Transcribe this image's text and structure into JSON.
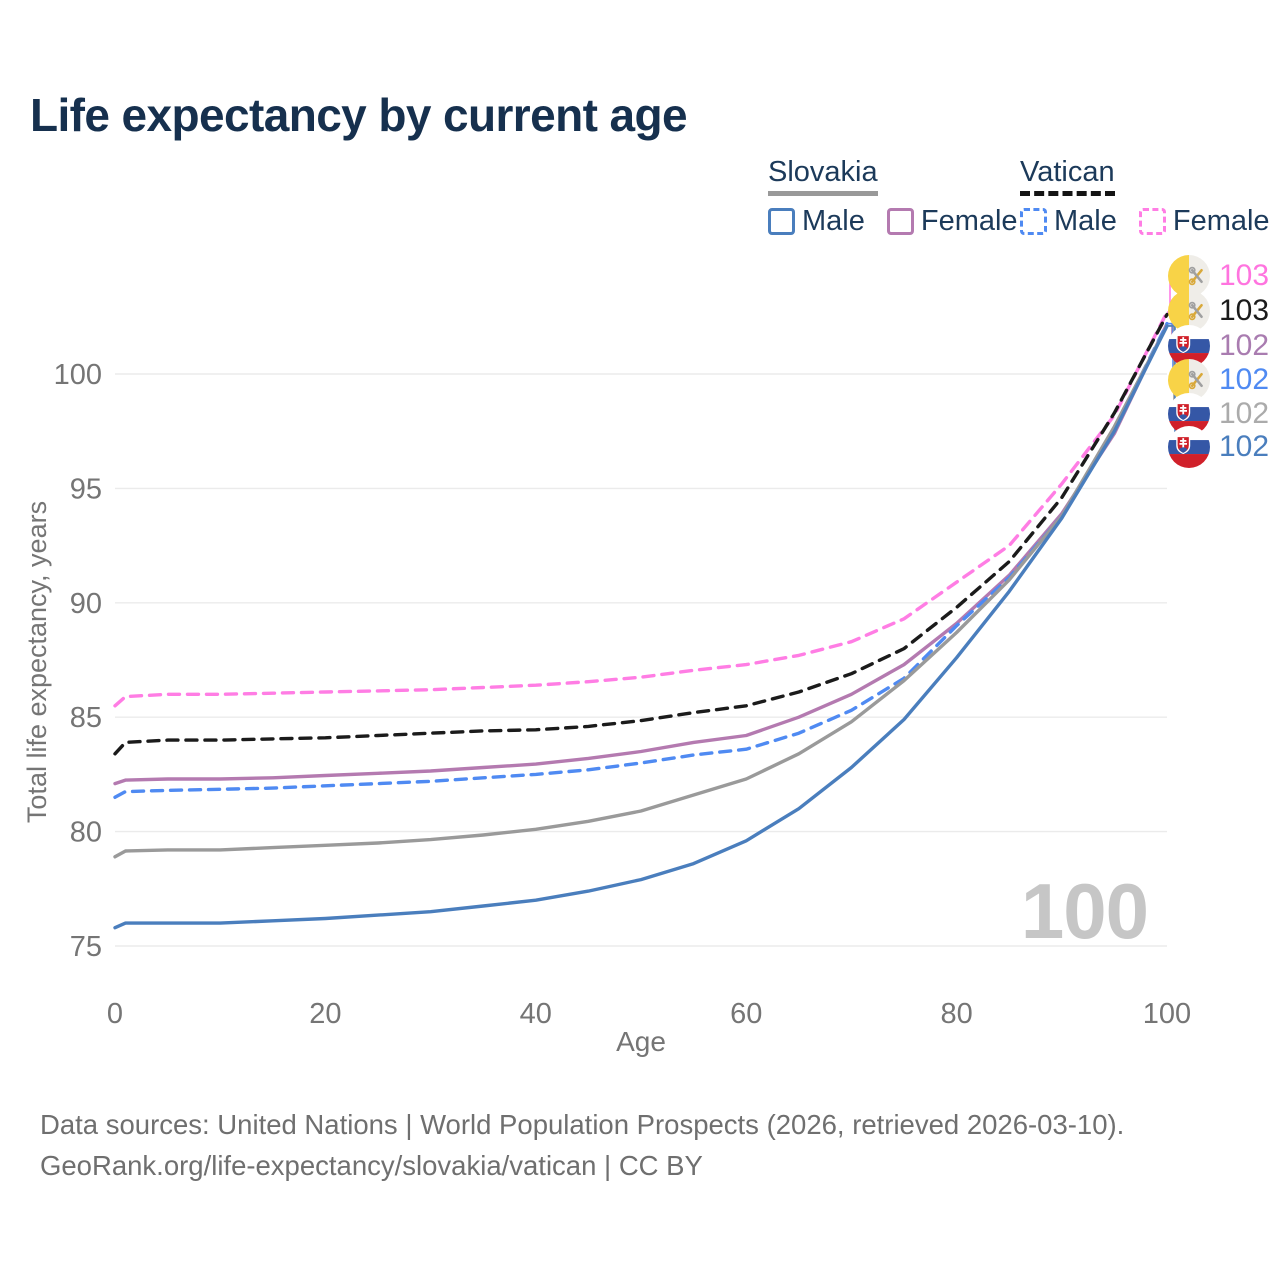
{
  "title": "Life expectancy by current age",
  "watermark": "100",
  "legend": {
    "groups": [
      {
        "name": "Slovakia",
        "line_style": "solid",
        "underline_color": "#999999",
        "items": [
          {
            "label": "Male",
            "color": "#4a7ebd",
            "dashed": false
          },
          {
            "label": "Female",
            "color": "#b47ab0",
            "dashed": false
          }
        ]
      },
      {
        "name": "Vatican",
        "line_style": "dashed",
        "underline_color": "#141414",
        "items": [
          {
            "label": "Male",
            "color": "#4f8af2",
            "dashed": true
          },
          {
            "label": "Female",
            "color": "#ff7de4",
            "dashed": true
          }
        ]
      }
    ]
  },
  "chart_data": {
    "type": "line",
    "title": "Life expectancy by current age",
    "xlabel": "Age",
    "ylabel": "Total life expectancy, years",
    "xlim": [
      0,
      100
    ],
    "ylim": [
      75,
      100
    ],
    "x_ticks": [
      0,
      20,
      40,
      60,
      80,
      100
    ],
    "y_ticks": [
      75,
      80,
      85,
      90,
      95,
      100
    ],
    "grid": true,
    "legend_position": "top-right",
    "ages": [
      0,
      1,
      5,
      10,
      15,
      20,
      25,
      30,
      35,
      40,
      45,
      50,
      55,
      60,
      65,
      70,
      75,
      80,
      85,
      90,
      95,
      100
    ],
    "series": [
      {
        "name": "Vatican Female",
        "country": "Vatican",
        "sex": "Female",
        "color": "#ff7de4",
        "dashed": true,
        "flag": "vatican",
        "end_label": "103",
        "label_color": "#ff74df",
        "values": [
          85.5,
          85.9,
          86.0,
          86.0,
          86.05,
          86.1,
          86.15,
          86.2,
          86.3,
          86.4,
          86.55,
          86.75,
          87.05,
          87.3,
          87.7,
          88.3,
          89.3,
          90.9,
          92.5,
          95.2,
          98.2,
          102.7
        ]
      },
      {
        "name": "Vatican Both sexes",
        "country": "Vatican",
        "sex": "Both",
        "color": "#1b1b1b",
        "dashed": true,
        "flag": "vatican",
        "end_label": "103",
        "label_color": "#1b1b1b",
        "values": [
          83.4,
          83.9,
          84.0,
          84.0,
          84.05,
          84.1,
          84.2,
          84.3,
          84.4,
          84.45,
          84.6,
          84.85,
          85.2,
          85.5,
          86.1,
          86.9,
          88.0,
          89.8,
          91.8,
          94.6,
          98.3,
          102.6
        ]
      },
      {
        "name": "Slovakia Female",
        "country": "Slovakia",
        "sex": "Female",
        "color": "#b47ab0",
        "dashed": false,
        "flag": "slovakia",
        "end_label": "102",
        "label_color": "#a97cb0",
        "values": [
          82.1,
          82.25,
          82.3,
          82.3,
          82.35,
          82.45,
          82.55,
          82.65,
          82.8,
          82.95,
          83.2,
          83.5,
          83.9,
          84.2,
          85.0,
          86.0,
          87.3,
          89.1,
          91.2,
          93.9,
          97.4,
          102.2
        ]
      },
      {
        "name": "Vatican Male",
        "country": "Vatican",
        "sex": "Male",
        "color": "#4f8af2",
        "dashed": true,
        "flag": "vatican",
        "end_label": "102",
        "label_color": "#4f8af2",
        "values": [
          81.5,
          81.75,
          81.8,
          81.85,
          81.9,
          82.0,
          82.1,
          82.2,
          82.35,
          82.5,
          82.7,
          83.0,
          83.35,
          83.6,
          84.3,
          85.3,
          86.7,
          89.0,
          91.1,
          93.8,
          97.6,
          102.2
        ]
      },
      {
        "name": "Slovakia Both sexes",
        "country": "Slovakia",
        "sex": "Both",
        "color": "#9a9a9a",
        "dashed": false,
        "flag": "slovakia",
        "end_label": "102",
        "label_color": "#ababab",
        "values": [
          78.9,
          79.15,
          79.2,
          79.2,
          79.3,
          79.4,
          79.5,
          79.65,
          79.85,
          80.1,
          80.45,
          80.9,
          81.6,
          82.3,
          83.4,
          84.8,
          86.6,
          88.7,
          91.0,
          93.8,
          97.7,
          102.1
        ]
      },
      {
        "name": "Slovakia Male",
        "country": "Slovakia",
        "sex": "Male",
        "color": "#4a7ebd",
        "dashed": false,
        "flag": "slovakia",
        "end_label": "102",
        "label_color": "#4a7ebd",
        "values": [
          75.8,
          76.0,
          76.0,
          76.0,
          76.1,
          76.2,
          76.35,
          76.5,
          76.75,
          77.0,
          77.4,
          77.9,
          78.6,
          79.6,
          81.0,
          82.8,
          84.9,
          87.6,
          90.5,
          93.7,
          97.5,
          102.1
        ]
      }
    ]
  },
  "footer": {
    "line1": "Data sources: United Nations | World Population Prospects (2026, retrieved 2026-03-10).",
    "line2": "GeoRank.org/life-expectancy/slovakia/vatican | CC BY"
  }
}
